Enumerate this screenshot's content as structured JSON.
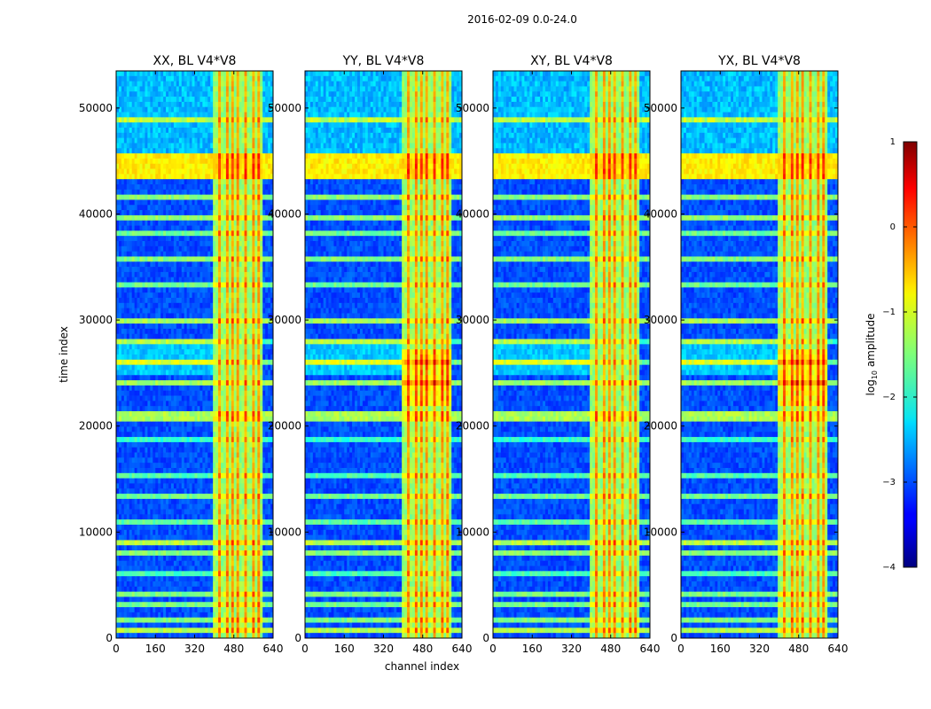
{
  "figure_title": "2016-02-09 0.0-24.0",
  "colors": {
    "background": "#ffffff",
    "axis": "#000000"
  },
  "chart_data": {
    "type": "heatmap",
    "suptitle": "2016-02-09 0.0-24.0",
    "shared_xlabel": "channel index",
    "ylabel": "time index",
    "colormap": "jet",
    "x_range": [
      0,
      640
    ],
    "y_range": [
      0,
      53500
    ],
    "xticks": [
      0,
      160,
      320,
      480,
      640
    ],
    "yticks": [
      0,
      10000,
      20000,
      30000,
      40000,
      50000
    ],
    "panels": [
      {
        "title": "XX, BL V4*V8",
        "pol": "XX"
      },
      {
        "title": "YY, BL V4*V8",
        "pol": "YY"
      },
      {
        "title": "XY, BL V4*V8",
        "pol": "XY"
      },
      {
        "title": "YX, BL V4*V8",
        "pol": "YX"
      }
    ],
    "colorbar": {
      "label": "log₁₀ amplitude",
      "label_prefix": "log",
      "label_sub": "10",
      "label_suffix": " amplitude",
      "range": [
        -4,
        1
      ],
      "ticks": [
        1,
        0,
        -1,
        -2,
        -3,
        -4
      ],
      "tick_labels": [
        "1",
        "0",
        "−1",
        "−2",
        "−3",
        "−4"
      ]
    },
    "structure": {
      "bright_channel_band": [
        400,
        600
      ],
      "strong_rfi_time_band": [
        43500,
        45500
      ],
      "horizontal_stripe_rows_approx": [
        700,
        1500,
        3200,
        4200,
        6000,
        8200,
        9100,
        11000,
        13300,
        15400,
        18500,
        20900,
        24300,
        26100,
        27900,
        30000,
        33500,
        35800,
        38200,
        39800,
        41500,
        43800,
        44400,
        48700
      ]
    }
  }
}
